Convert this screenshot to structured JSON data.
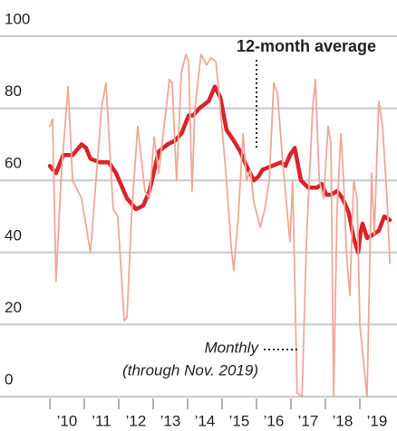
{
  "chart_data": {
    "type": "line",
    "xlim": [
      2010,
      2020
    ],
    "xticks": [
      {
        "value": 2010,
        "label": "’10"
      },
      {
        "value": 2011,
        "label": "’11"
      },
      {
        "value": 2012,
        "label": "’12"
      },
      {
        "value": 2013,
        "label": "’13"
      },
      {
        "value": 2014,
        "label": "’14"
      },
      {
        "value": 2015,
        "label": "’15"
      },
      {
        "value": 2016,
        "label": "’16"
      },
      {
        "value": 2017,
        "label": "’17"
      },
      {
        "value": 2018,
        "label": "’18"
      },
      {
        "value": 2019,
        "label": "’19"
      }
    ],
    "ylim": [
      0,
      100
    ],
    "yticks": [
      0,
      20,
      40,
      60,
      80,
      100
    ],
    "grid": true,
    "annotations": [
      "(through Nov. 2019)"
    ],
    "series": [
      {
        "name": "Monthly",
        "color": "#f0a898",
        "width": 1.8,
        "x": [
          2010.0,
          2010.08,
          2010.18,
          2010.32,
          2010.53,
          2010.66,
          2010.92,
          2011.18,
          2011.5,
          2011.63,
          2011.84,
          2011.97,
          2012.16,
          2012.24,
          2012.37,
          2012.55,
          2012.76,
          2012.89,
          2013.03,
          2013.16,
          2013.47,
          2013.55,
          2013.68,
          2013.82,
          2013.95,
          2014.03,
          2014.13,
          2014.21,
          2014.39,
          2014.55,
          2014.68,
          2014.82,
          2014.95,
          2015.13,
          2015.26,
          2015.34,
          2015.47,
          2015.61,
          2015.71,
          2015.82,
          2015.92,
          2016.11,
          2016.24,
          2016.37,
          2016.5,
          2016.61,
          2016.76,
          2016.97,
          2017.05,
          2017.18,
          2017.32,
          2017.45,
          2017.63,
          2017.71,
          2017.82,
          2017.95,
          2018.08,
          2018.16,
          2018.24,
          2018.34,
          2018.45,
          2018.53,
          2018.61,
          2018.71,
          2018.82,
          2018.92,
          2019.0,
          2019.21,
          2019.34,
          2019.42,
          2019.55,
          2019.66,
          2019.79,
          2019.87
        ],
        "values": [
          75,
          77,
          32,
          60,
          86,
          60,
          55,
          40,
          80,
          87,
          52,
          50,
          21,
          22,
          50,
          75,
          57,
          55,
          72,
          62,
          88,
          87,
          60,
          90,
          95,
          93,
          57,
          80,
          95,
          92,
          94,
          93,
          80,
          60,
          42,
          35,
          50,
          73,
          60,
          63,
          54,
          47,
          52,
          60,
          87,
          84,
          65,
          43,
          60,
          1,
          0,
          43,
          80,
          88,
          60,
          55,
          75,
          70,
          0,
          52,
          73,
          60,
          40,
          28,
          60,
          55,
          20,
          0,
          62,
          45,
          82,
          75,
          55,
          37
        ]
      },
      {
        "name": "12-month average",
        "color": "#d8232a",
        "width": 4.5,
        "x": [
          2010.0,
          2010.18,
          2010.39,
          2010.66,
          2010.92,
          2011.05,
          2011.18,
          2011.45,
          2011.71,
          2011.92,
          2012.24,
          2012.5,
          2012.71,
          2012.89,
          2013.16,
          2013.42,
          2013.63,
          2013.82,
          2014.03,
          2014.16,
          2014.34,
          2014.61,
          2014.79,
          2014.95,
          2015.13,
          2015.34,
          2015.53,
          2015.71,
          2015.92,
          2016.05,
          2016.18,
          2016.45,
          2016.71,
          2016.84,
          2016.97,
          2017.11,
          2017.29,
          2017.5,
          2017.76,
          2017.89,
          2018.03,
          2018.16,
          2018.34,
          2018.5,
          2018.68,
          2018.82,
          2018.95,
          2019.03,
          2019.08,
          2019.21,
          2019.39,
          2019.55,
          2019.71,
          2019.87
        ],
        "values": [
          64,
          62,
          67,
          67,
          70,
          69,
          66,
          65,
          65,
          62,
          55,
          52,
          53,
          57,
          68,
          70,
          71,
          73,
          78,
          78,
          80,
          82,
          86,
          83,
          74,
          71,
          68,
          64,
          60,
          61,
          63,
          64,
          65,
          64,
          67,
          69,
          60,
          58,
          58,
          59,
          56,
          56,
          57,
          55,
          51,
          44,
          40,
          46,
          48,
          44,
          45,
          46,
          50,
          49
        ]
      }
    ]
  }
}
